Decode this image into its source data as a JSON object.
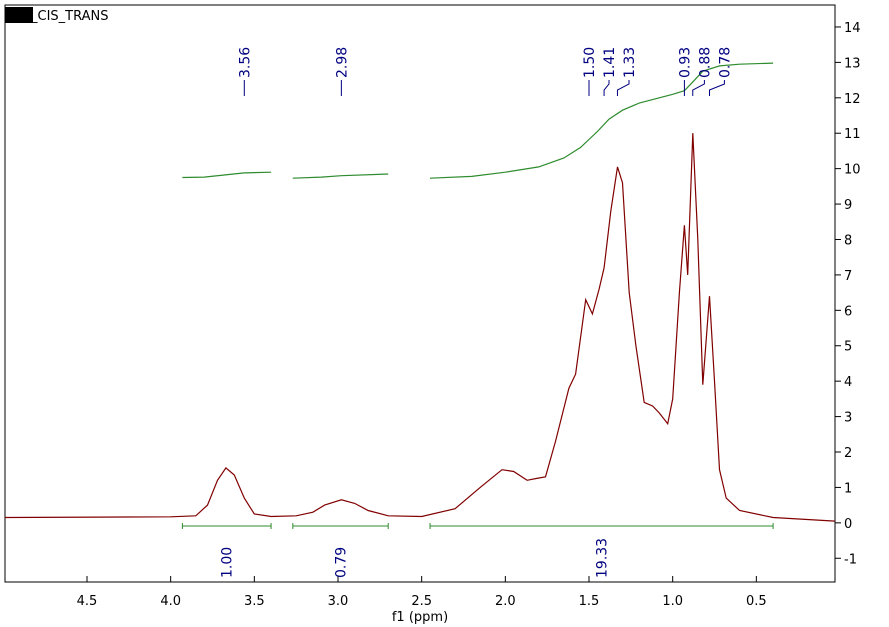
{
  "chart_data": {
    "type": "line",
    "title": "_CIS_TRANS",
    "xlabel": "f1 (ppm)",
    "xlim": [
      4.99,
      0.03
    ],
    "ylim": [
      -1.67,
      14.62
    ],
    "xticks": [
      4.5,
      {
        "value": 4,
        "label": "4.0"
      },
      3.5,
      {
        "value": 3,
        "label": "3.0"
      },
      2.5,
      {
        "value": 2,
        "label": "2.0"
      },
      1.5,
      {
        "value": 1,
        "label": "1.0"
      },
      0.5
    ],
    "yticks": [
      -1,
      0,
      1,
      2,
      3,
      4,
      5,
      6,
      7,
      8,
      9,
      10,
      11,
      12,
      13,
      14
    ],
    "series": [
      {
        "color": "#800000",
        "x": [
          4.99,
          4.0,
          3.85,
          3.78,
          3.72,
          3.67,
          3.62,
          3.56,
          3.5,
          3.4,
          3.25,
          3.15,
          3.08,
          2.98,
          2.9,
          2.82,
          2.7,
          2.5,
          2.3,
          2.15,
          2.02,
          1.95,
          1.87,
          1.82,
          1.76,
          1.7,
          1.62,
          1.58,
          1.52,
          1.48,
          1.44,
          1.41,
          1.37,
          1.33,
          1.3,
          1.26,
          1.22,
          1.17,
          1.12,
          1.08,
          1.03,
          1.0,
          0.96,
          0.93,
          0.91,
          0.88,
          0.85,
          0.82,
          0.78,
          0.75,
          0.72,
          0.68,
          0.6,
          0.4,
          0.03
        ],
        "values": [
          0.15,
          0.17,
          0.2,
          0.5,
          1.2,
          1.55,
          1.35,
          0.7,
          0.25,
          0.18,
          0.2,
          0.3,
          0.5,
          0.65,
          0.55,
          0.35,
          0.2,
          0.18,
          0.4,
          1.0,
          1.5,
          1.45,
          1.2,
          1.25,
          1.3,
          2.3,
          3.8,
          4.2,
          6.3,
          5.9,
          6.6,
          7.2,
          8.8,
          10.05,
          9.6,
          6.5,
          5.0,
          3.4,
          3.3,
          3.1,
          2.8,
          3.5,
          6.5,
          8.4,
          7.0,
          11.0,
          8.0,
          3.9,
          6.4,
          4.0,
          1.5,
          0.7,
          0.35,
          0.15,
          0.05
        ]
      },
      {
        "color": "#2e8b2e",
        "x": [
          3.93,
          3.8,
          3.68,
          3.56,
          3.4,
          3.33,
          3.27,
          3.1,
          2.98,
          2.7,
          2.55,
          2.45,
          2.2,
          2.0,
          1.8,
          1.65,
          1.55,
          1.45,
          1.38,
          1.3,
          1.2,
          1.0,
          0.93,
          0.88,
          0.82,
          0.72,
          0.6,
          0.4
        ],
        "values": [
          9.75,
          9.76,
          9.82,
          9.88,
          9.9,
          null,
          9.73,
          9.76,
          9.8,
          9.85,
          null,
          9.73,
          9.78,
          9.9,
          10.05,
          10.3,
          10.6,
          11.05,
          11.4,
          11.65,
          11.85,
          12.1,
          12.2,
          12.45,
          12.75,
          12.9,
          12.95,
          12.98
        ]
      }
    ],
    "peaks": [
      3.56,
      2.98,
      {
        "value": 1.5,
        "label": "1.50"
      },
      1.41,
      1.33,
      0.93,
      0.88,
      0.78
    ],
    "integrals": [
      {
        "range": [
          3.93,
          3.4
        ],
        "value": 1,
        "label": "1.00"
      },
      {
        "range": [
          3.27,
          2.7
        ],
        "value": 0.79
      },
      {
        "range": [
          2.45,
          0.4
        ],
        "value": 19.33
      }
    ],
    "label_color": "#000080"
  }
}
